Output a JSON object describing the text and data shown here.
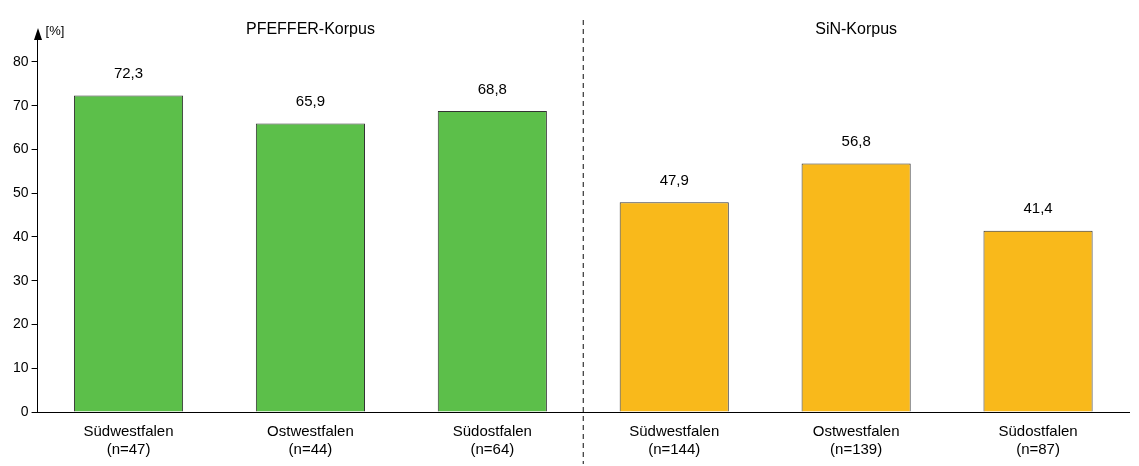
{
  "chart_data": {
    "type": "bar",
    "ylabel": "[%]",
    "categories": [
      "Südwestfalen\n(n=47)",
      "Ostwestfalen\n(n=44)",
      "Südostfalen\n(n=64)",
      "Südwestfalen\n(n=144)",
      "Ostwestfalen\n(n=139)",
      "Südostfalen\n(n=87)"
    ],
    "values": [
      72.3,
      65.9,
      68.8,
      47.9,
      56.8,
      41.4
    ],
    "value_labels": [
      "72,3",
      "65,9",
      "68,8",
      "47,9",
      "56,8",
      "41,4"
    ],
    "colors": [
      "#5cbf4a",
      "#5cbf4a",
      "#5cbf4a",
      "#f9b91b",
      "#f9b91b",
      "#f9b91b"
    ],
    "ylim": [
      0,
      85
    ],
    "yticks": [
      0,
      10,
      20,
      30,
      40,
      50,
      60,
      70,
      80
    ],
    "annotations": [
      "PFEFFER-Korpus",
      "SiN-Korpus"
    ],
    "grid": false,
    "legend": false
  }
}
